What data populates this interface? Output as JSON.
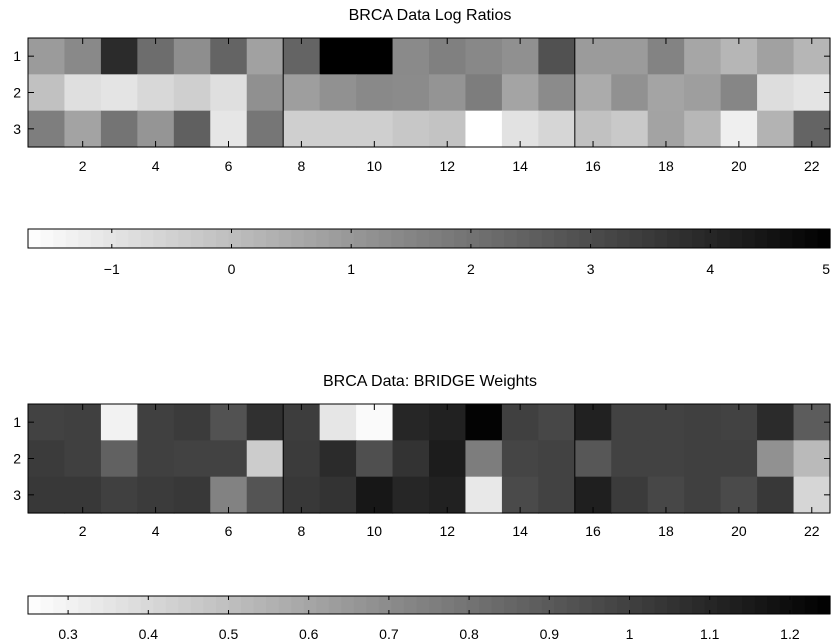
{
  "chart_data": [
    {
      "type": "heatmap",
      "title": "BRCA Data Log Ratios",
      "x": [
        1,
        2,
        3,
        4,
        5,
        6,
        7,
        8,
        9,
        10,
        11,
        12,
        13,
        14,
        15,
        16,
        17,
        18,
        19,
        20,
        21,
        22
      ],
      "y": [
        1,
        2,
        3
      ],
      "xticks": [
        2,
        4,
        6,
        8,
        10,
        12,
        14,
        16,
        18,
        20,
        22
      ],
      "yticks": [
        1,
        2,
        3
      ],
      "group_boundaries": [
        7.5,
        15.5
      ],
      "values": [
        [
          0.93,
          1.41,
          3.86,
          2.14,
          1.26,
          2.36,
          0.76,
          2.38,
          5.0,
          5.0,
          1.37,
          1.65,
          1.43,
          1.21,
          2.86,
          0.94,
          0.94,
          1.55,
          0.64,
          0.21,
          0.76,
          0.21
        ],
        [
          -0.06,
          -0.85,
          -0.98,
          -0.68,
          -0.44,
          -0.85,
          1.21,
          0.84,
          1.2,
          1.4,
          1.36,
          1.11,
          1.71,
          0.69,
          1.34,
          0.51,
          1.2,
          0.68,
          0.86,
          1.47,
          -0.8,
          -0.99
        ],
        [
          1.7,
          0.73,
          1.94,
          1.09,
          2.48,
          -1.05,
          1.9,
          -0.44,
          -0.44,
          -0.44,
          -0.23,
          -0.13,
          -1.73,
          -0.94,
          -0.63,
          -0.06,
          -0.27,
          0.72,
          0.19,
          -1.27,
          0.29,
          2.38
        ]
      ],
      "colorbar": {
        "range": [
          -1.7,
          5.0
        ],
        "ticks": [
          -1,
          0,
          1,
          2,
          3,
          4,
          5
        ],
        "tick_labels": [
          "−1",
          "0",
          "1",
          "2",
          "3",
          "4",
          "5"
        ]
      },
      "colormap": "gray-reversed (low = white, high = black)"
    },
    {
      "type": "heatmap",
      "title": "BRCA Data: BRIDGE Weights",
      "x": [
        1,
        2,
        3,
        4,
        5,
        6,
        7,
        8,
        9,
        10,
        11,
        12,
        13,
        14,
        15,
        16,
        17,
        18,
        19,
        20,
        21,
        22
      ],
      "y": [
        1,
        2,
        3
      ],
      "xticks": [
        2,
        4,
        6,
        8,
        10,
        12,
        14,
        16,
        18,
        20,
        22
      ],
      "yticks": [
        1,
        2,
        3
      ],
      "group_boundaries": [
        7.5,
        15.5
      ],
      "values": [
        [
          0.99,
          1.0,
          0.3,
          1.0,
          1.02,
          0.93,
          1.06,
          1.01,
          0.35,
          0.27,
          1.1,
          1.12,
          1.24,
          1.0,
          0.97,
          1.12,
          0.99,
          0.99,
          1.0,
          0.99,
          1.08,
          0.89
        ],
        [
          1.02,
          1.0,
          0.87,
          1.0,
          0.99,
          0.99,
          0.45,
          1.02,
          1.08,
          0.94,
          1.05,
          1.14,
          0.76,
          0.98,
          0.99,
          0.91,
          0.99,
          0.99,
          1.0,
          1.0,
          0.68,
          0.52
        ],
        [
          1.03,
          1.03,
          1.0,
          1.02,
          1.03,
          0.74,
          0.92,
          1.03,
          1.05,
          1.16,
          1.1,
          1.12,
          0.34,
          0.96,
          0.99,
          1.13,
          1.02,
          0.97,
          1.0,
          0.96,
          1.03,
          0.41
        ]
      ],
      "colorbar": {
        "range": [
          0.25,
          1.25
        ],
        "ticks": [
          0.3,
          0.4,
          0.5,
          0.6,
          0.7,
          0.8,
          0.9,
          1.0,
          1.1,
          1.2
        ],
        "tick_labels": [
          "0.3",
          "0.4",
          "0.5",
          "0.6",
          "0.7",
          "0.8",
          "0.9",
          "1",
          "1.1",
          "1.2"
        ]
      },
      "colormap": "gray-reversed (low = white, high = black)"
    }
  ]
}
